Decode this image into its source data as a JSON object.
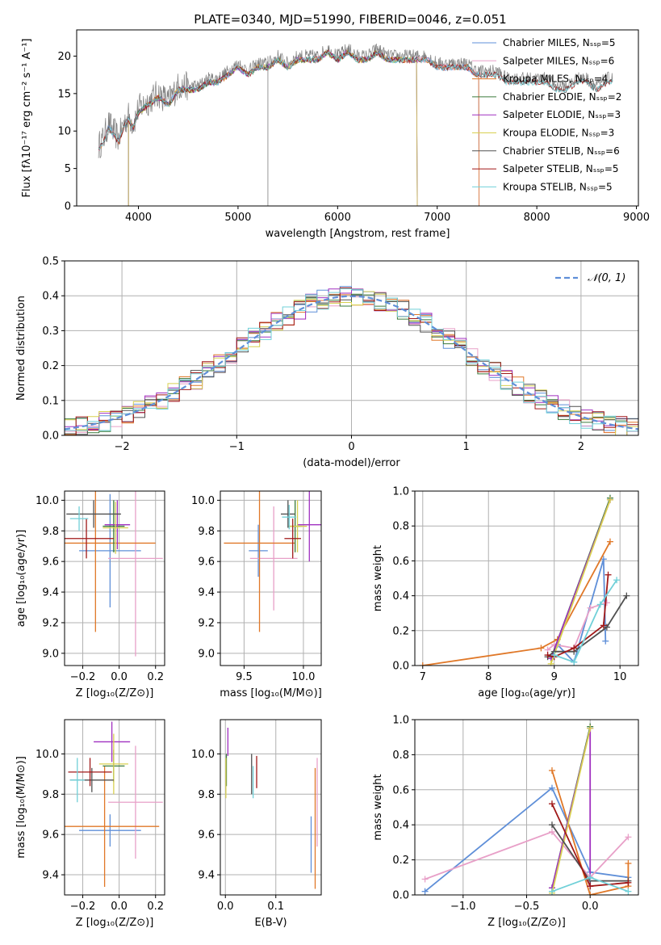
{
  "figure_title": "PLATE=0340, MJD=51990, FIBERID=0046, z=0.051",
  "colors": {
    "grid": "#b0b0b0",
    "gaussian": "#5f8fd8"
  },
  "chart_data": [
    {
      "id": "spectrum",
      "type": "line",
      "xlabel": "wavelength [Angstrom, rest frame]",
      "ylabel": "Flux [fλ10⁻¹⁷ erg cm⁻² s⁻¹ A⁻¹]",
      "xlim": [
        3380,
        9020
      ],
      "ylim": [
        0,
        23.5
      ],
      "xticks": [
        4000,
        5000,
        6000,
        7000,
        8000,
        9000
      ],
      "yticks": [
        0,
        5,
        10,
        15,
        20
      ],
      "grid": false,
      "legend_position": "upper right",
      "data_series": {
        "name": "data",
        "color": "#808080",
        "x": [
          3600,
          3650,
          3700,
          3750,
          3800,
          3850,
          3900,
          3950,
          4000,
          4100,
          4200,
          4300,
          4400,
          4500,
          4600,
          4700,
          4800,
          4900,
          5000,
          5100,
          5200,
          5300,
          5400,
          5500,
          5600,
          5700,
          5800,
          5900,
          6000,
          6100,
          6200,
          6300,
          6400,
          6500,
          6600,
          6700,
          6800,
          6900,
          7000,
          7100,
          7200,
          7300,
          7400,
          7500,
          7600,
          7700,
          7800,
          7900,
          8000,
          8100,
          8200,
          8300,
          8400,
          8500,
          8600,
          8700,
          8760
        ],
        "y": [
          8,
          9,
          11,
          10,
          9,
          11,
          12,
          11,
          13,
          14,
          15,
          14,
          16,
          16,
          16,
          17,
          17,
          18,
          19,
          18,
          19,
          19,
          20,
          19,
          20,
          20,
          20,
          21,
          20,
          21,
          20,
          20,
          21,
          20,
          20,
          20,
          20,
          20,
          19,
          19,
          19,
          19,
          18,
          18,
          18,
          17,
          17,
          17,
          17,
          17,
          16,
          16,
          17,
          17,
          16,
          17,
          17
        ]
      },
      "series": [
        {
          "name": "Chabrier MILES, Nₛₛₚ=5",
          "color": "#5f8fd8",
          "xmin": 3600,
          "xmax": 7420,
          "dropout": null
        },
        {
          "name": "Salpeter MILES, Nₛₛₚ=6",
          "color": "#e8a0c8",
          "xmin": 3600,
          "xmax": 7420,
          "dropout": null
        },
        {
          "name": "Kroupa MILES, Nₛₛₚ=4",
          "color": "#e07828",
          "xmin": 3600,
          "xmax": 7420,
          "dropout": null
        },
        {
          "name": "Chabrier ELODIE, Nₛₛₚ=2",
          "color": "#3a7a3a",
          "xmin": 3900,
          "xmax": 6800,
          "dropout": null
        },
        {
          "name": "Salpeter ELODIE, Nₛₛₚ=3",
          "color": "#a030c0",
          "xmin": 3900,
          "xmax": 6800,
          "dropout": null
        },
        {
          "name": "Kroupa ELODIE, Nₛₛₚ=3",
          "color": "#d8d050",
          "xmin": 3900,
          "xmax": 6800,
          "dropout": null
        },
        {
          "name": "Chabrier STELIB, Nₛₛₚ=6",
          "color": "#505050",
          "xmin": 3600,
          "xmax": 8760,
          "dropout": null
        },
        {
          "name": "Salpeter STELIB, Nₛₛₚ=5",
          "color": "#a01818",
          "xmin": 3600,
          "xmax": 8760,
          "dropout": null
        },
        {
          "name": "Kroupa STELIB, Nₛₛₚ=5",
          "color": "#70d0d8",
          "xmin": 3600,
          "xmax": 8760,
          "dropout": null
        }
      ]
    },
    {
      "id": "residuals",
      "type": "line",
      "xlabel": "(data-model)/error",
      "ylabel": "Normed distribution",
      "xlim": [
        -2.5,
        2.5
      ],
      "ylim": [
        0,
        0.5
      ],
      "xticks": [
        -2,
        -1,
        0,
        1,
        2
      ],
      "yticks": [
        0.0,
        0.1,
        0.2,
        0.3,
        0.4,
        0.5
      ],
      "grid": true,
      "legend_position": "upper right",
      "legend": "𝒩(0, 1)",
      "bin_width": 0.1,
      "histogram_colors": [
        "#5f8fd8",
        "#e8a0c8",
        "#e07828",
        "#3a7a3a",
        "#a030c0",
        "#d8d050",
        "#505050",
        "#a01818",
        "#70d0d8"
      ]
    },
    {
      "id": "age-vs-Z",
      "type": "scatter",
      "xlabel": "Z [log₁₀(Z/Z⊙)]",
      "ylabel": "age  [log₁₀(age/yr)]",
      "xlim": [
        -0.3,
        0.25
      ],
      "ylim": [
        8.92,
        10.06
      ],
      "xticks": [
        -0.2,
        0.0,
        0.2
      ],
      "yticks": [
        9.0,
        9.2,
        9.4,
        9.6,
        9.8,
        10.0
      ],
      "grid": true,
      "points": [
        {
          "color": "#5f8fd8",
          "x": -0.05,
          "y": 9.67,
          "xerr": 0.17,
          "yerr": 0.37
        },
        {
          "color": "#e8a0c8",
          "x": 0.09,
          "y": 9.62,
          "xerr": 0.15,
          "yerr": 0.64
        },
        {
          "color": "#e07828",
          "x": -0.13,
          "y": 9.72,
          "xerr": 0.33,
          "yerr": 0.58
        },
        {
          "color": "#3a7a3a",
          "x": -0.03,
          "y": 9.83,
          "xerr": 0.06,
          "yerr": 0.17
        },
        {
          "color": "#a030c0",
          "x": -0.01,
          "y": 9.84,
          "xerr": 0.07,
          "yerr": 0.16
        },
        {
          "color": "#d8d050",
          "x": -0.02,
          "y": 9.82,
          "xerr": 0.07,
          "yerr": 0.17
        },
        {
          "color": "#505050",
          "x": -0.14,
          "y": 9.91,
          "xerr": 0.15,
          "yerr": 0.09
        },
        {
          "color": "#a01818",
          "x": -0.18,
          "y": 9.75,
          "xerr": 0.15,
          "yerr": 0.13
        },
        {
          "color": "#70d0d8",
          "x": -0.22,
          "y": 9.88,
          "xerr": 0.05,
          "yerr": 0.08
        }
      ]
    },
    {
      "id": "age-vs-mass",
      "type": "scatter",
      "xlabel": "mass [log₁₀(M/M⊙)]",
      "ylabel": "",
      "xlim": [
        9.3,
        10.15
      ],
      "ylim": [
        8.92,
        10.06
      ],
      "xticks": [
        9.5,
        10.0
      ],
      "yticks": [
        9.0,
        9.2,
        9.4,
        9.6,
        9.8,
        10.0
      ],
      "grid": true,
      "points": [
        {
          "color": "#5f8fd8",
          "x": 9.62,
          "y": 9.67,
          "xerr": 0.08,
          "yerr": 0.17
        },
        {
          "color": "#e8a0c8",
          "x": 9.75,
          "y": 9.62,
          "xerr": 0.2,
          "yerr": 0.34
        },
        {
          "color": "#e07828",
          "x": 9.63,
          "y": 9.72,
          "xerr": 0.3,
          "yerr": 0.58
        },
        {
          "color": "#3a7a3a",
          "x": 9.93,
          "y": 9.83,
          "xerr": 0.06,
          "yerr": 0.17
        },
        {
          "color": "#a030c0",
          "x": 10.05,
          "y": 9.84,
          "xerr": 0.1,
          "yerr": 0.24
        },
        {
          "color": "#d8d050",
          "x": 9.95,
          "y": 9.83,
          "xerr": 0.08,
          "yerr": 0.17
        },
        {
          "color": "#505050",
          "x": 9.87,
          "y": 9.91,
          "xerr": 0.06,
          "yerr": 0.09
        },
        {
          "color": "#a01818",
          "x": 9.91,
          "y": 9.75,
          "xerr": 0.07,
          "yerr": 0.13
        },
        {
          "color": "#70d0d8",
          "x": 9.88,
          "y": 9.89,
          "xerr": 0.06,
          "yerr": 0.08
        }
      ]
    },
    {
      "id": "weight-vs-age",
      "type": "line",
      "xlabel": "age  [log₁₀(age/yr)]",
      "ylabel": "mass weight",
      "xlim": [
        6.88,
        10.28
      ],
      "ylim": [
        0,
        1
      ],
      "xticks": [
        7,
        8,
        9,
        10
      ],
      "yticks": [
        0.0,
        0.2,
        0.4,
        0.6,
        0.8,
        1.0
      ],
      "grid": true,
      "series": [
        {
          "color": "#5f8fd8",
          "x": [
            8.95,
            9.05,
            9.3,
            9.75,
            9.78
          ],
          "y": [
            0.04,
            0.12,
            0.02,
            0.61,
            0.14
          ]
        },
        {
          "color": "#e8a0c8",
          "x": [
            8.9,
            9.0,
            9.3,
            9.55,
            9.8
          ],
          "y": [
            0.09,
            0.12,
            0.1,
            0.33,
            0.36
          ]
        },
        {
          "color": "#e07828",
          "x": [
            7.0,
            8.8,
            9.05,
            9.85
          ],
          "y": [
            0.0,
            0.1,
            0.15,
            0.71
          ]
        },
        {
          "color": "#3a7a3a",
          "x": [
            8.95,
            9.85
          ],
          "y": [
            0.04,
            0.96
          ]
        },
        {
          "color": "#a030c0",
          "x": [
            8.95,
            9.85
          ],
          "y": [
            0.04,
            0.95
          ]
        },
        {
          "color": "#d8d050",
          "x": [
            8.95,
            9.85
          ],
          "y": [
            0.01,
            0.95
          ]
        },
        {
          "color": "#505050",
          "x": [
            8.9,
            9.0,
            9.3,
            9.8,
            10.1
          ],
          "y": [
            0.05,
            0.08,
            0.08,
            0.22,
            0.4
          ]
        },
        {
          "color": "#a01818",
          "x": [
            8.9,
            9.0,
            9.3,
            9.75,
            9.82
          ],
          "y": [
            0.06,
            0.05,
            0.1,
            0.23,
            0.52
          ]
        },
        {
          "color": "#70d0d8",
          "x": [
            9.0,
            9.3,
            9.7,
            9.95
          ],
          "y": [
            0.06,
            0.02,
            0.35,
            0.49
          ]
        }
      ]
    },
    {
      "id": "mass-vs-Z",
      "type": "scatter",
      "xlabel": "Z [log₁₀(Z/Z⊙)]",
      "ylabel": "mass [log₁₀(M/M⊙)]",
      "xlim": [
        -0.3,
        0.25
      ],
      "ylim": [
        9.3,
        10.17
      ],
      "xticks": [
        -0.2,
        0.0,
        0.2
      ],
      "yticks": [
        9.4,
        9.6,
        9.8,
        10.0
      ],
      "grid": true,
      "points": [
        {
          "color": "#5f8fd8",
          "x": -0.05,
          "y": 9.62,
          "xerr": 0.17,
          "yerr": 0.08
        },
        {
          "color": "#e8a0c8",
          "x": 0.09,
          "y": 9.76,
          "xerr": 0.15,
          "yerr": 0.28
        },
        {
          "color": "#e07828",
          "x": -0.08,
          "y": 9.64,
          "xerr": 0.3,
          "yerr": 0.3
        },
        {
          "color": "#3a7a3a",
          "x": -0.03,
          "y": 9.94,
          "xerr": 0.06,
          "yerr": 0.08
        },
        {
          "color": "#a030c0",
          "x": -0.04,
          "y": 10.06,
          "xerr": 0.1,
          "yerr": 0.1
        },
        {
          "color": "#d8d050",
          "x": -0.03,
          "y": 9.95,
          "xerr": 0.08,
          "yerr": 0.15
        },
        {
          "color": "#505050",
          "x": -0.15,
          "y": 9.87,
          "xerr": 0.12,
          "yerr": 0.06
        },
        {
          "color": "#a01818",
          "x": -0.16,
          "y": 9.91,
          "xerr": 0.12,
          "yerr": 0.07
        },
        {
          "color": "#70d0d8",
          "x": -0.23,
          "y": 9.87,
          "xerr": 0.04,
          "yerr": 0.11
        }
      ]
    },
    {
      "id": "mass-vs-EBV",
      "type": "scatter",
      "xlabel": "E(B-V)",
      "ylabel": "",
      "xlim": [
        -0.01,
        0.19
      ],
      "ylim": [
        9.3,
        10.17
      ],
      "xticks": [
        0.0,
        0.1
      ],
      "yticks": [
        9.4,
        9.6,
        9.8,
        10.0
      ],
      "grid": true,
      "points": [
        {
          "color": "#5f8fd8",
          "x": 0.17,
          "y": 9.55,
          "xerr": 0,
          "yerr": 0.14
        },
        {
          "color": "#e8a0c8",
          "x": 0.182,
          "y": 9.76,
          "xerr": 0,
          "yerr": 0.22
        },
        {
          "color": "#e07828",
          "x": 0.178,
          "y": 9.63,
          "xerr": 0,
          "yerr": 0.3
        },
        {
          "color": "#3a7a3a",
          "x": 0.002,
          "y": 9.92,
          "xerr": 0,
          "yerr": 0.08
        },
        {
          "color": "#a030c0",
          "x": 0.005,
          "y": 10.06,
          "xerr": 0,
          "yerr": 0.07
        },
        {
          "color": "#d8d050",
          "x": 0.001,
          "y": 9.88,
          "xerr": 0,
          "yerr": 0.1
        },
        {
          "color": "#505050",
          "x": 0.052,
          "y": 9.9,
          "xerr": 0,
          "yerr": 0.1
        },
        {
          "color": "#a01818",
          "x": 0.062,
          "y": 9.91,
          "xerr": 0,
          "yerr": 0.08
        },
        {
          "color": "#70d0d8",
          "x": 0.055,
          "y": 9.86,
          "xerr": 0,
          "yerr": 0.08
        }
      ]
    },
    {
      "id": "weight-vs-Z",
      "type": "line",
      "xlabel": "Z [log₁₀(Z/Z⊙)]",
      "ylabel": "mass weight",
      "xlim": [
        -1.38,
        0.38
      ],
      "ylim": [
        0,
        1
      ],
      "xticks": [
        -1.0,
        -0.5,
        0.0
      ],
      "yticks": [
        0.0,
        0.2,
        0.4,
        0.6,
        0.8,
        1.0
      ],
      "grid": true,
      "series": [
        {
          "color": "#5f8fd8",
          "x": [
            -1.3,
            -0.3,
            0.0,
            0.3
          ],
          "y": [
            0.02,
            0.61,
            0.13,
            0.1
          ]
        },
        {
          "color": "#e8a0c8",
          "x": [
            -1.3,
            -0.3,
            0.0,
            0.3
          ],
          "y": [
            0.09,
            0.36,
            0.1,
            0.33
          ]
        },
        {
          "color": "#e07828",
          "x": [
            -0.3,
            0.0,
            0.3,
            0.3
          ],
          "y": [
            0.71,
            0.0,
            0.05,
            0.18
          ]
        },
        {
          "color": "#3a7a3a",
          "x": [
            -0.3,
            0.0
          ],
          "y": [
            0.04,
            0.96
          ]
        },
        {
          "color": "#a030c0",
          "x": [
            -0.3,
            0.0,
            0.0
          ],
          "y": [
            0.04,
            0.95,
            0.05
          ]
        },
        {
          "color": "#d8d050",
          "x": [
            -0.3,
            0.0
          ],
          "y": [
            0.01,
            0.95
          ]
        },
        {
          "color": "#505050",
          "x": [
            -0.3,
            0.0,
            0.3
          ],
          "y": [
            0.4,
            0.08,
            0.08
          ]
        },
        {
          "color": "#a01818",
          "x": [
            -0.3,
            0.0,
            0.3
          ],
          "y": [
            0.52,
            0.05,
            0.07
          ]
        },
        {
          "color": "#70d0d8",
          "x": [
            -0.3,
            0.0,
            0.3
          ],
          "y": [
            0.02,
            0.1,
            0.02
          ]
        }
      ]
    }
  ]
}
